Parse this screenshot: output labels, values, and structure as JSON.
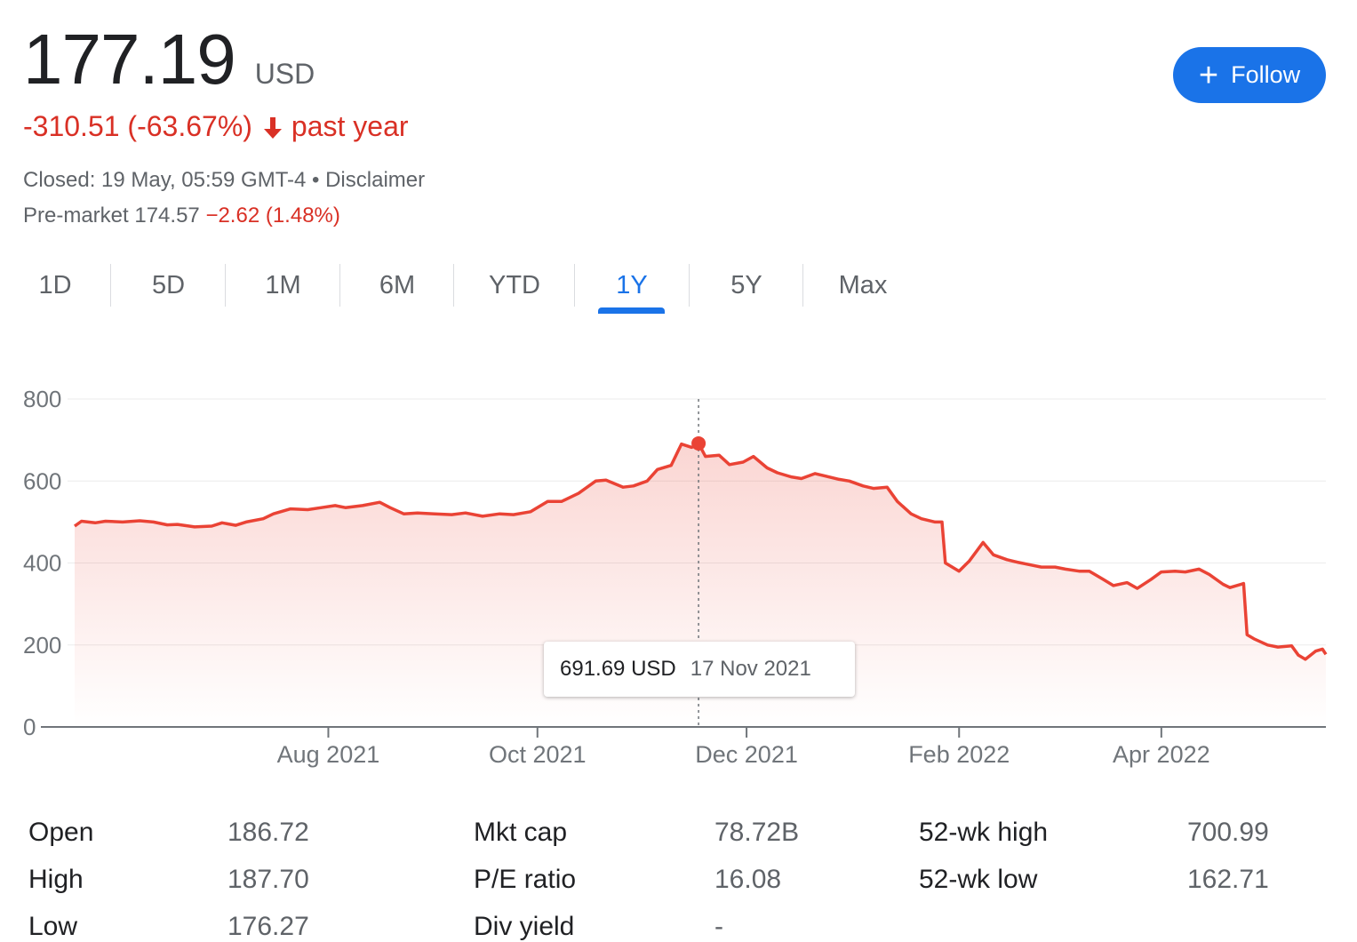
{
  "quote": {
    "price": "177.19",
    "currency": "USD",
    "change_text": "-310.51 (-63.67%)",
    "period_text": "past year",
    "closed_text": "Closed: 19 May, 05:59 GMT-4 • Disclaimer",
    "premarket_label": "Pre-market 174.57",
    "premarket_change": "−2.62 (1.48%)",
    "negative_color": "#d93025"
  },
  "follow_button": {
    "label": "Follow",
    "icon": "plus-icon",
    "color": "#1a73e8"
  },
  "range_tabs": {
    "items": [
      "1D",
      "5D",
      "1M",
      "6M",
      "YTD",
      "1Y",
      "5Y",
      "Max"
    ],
    "active": "1Y"
  },
  "tooltip": {
    "value": "691.69 USD",
    "date": "17 Nov 2021"
  },
  "chart_data": {
    "type": "area",
    "title": "",
    "xlabel": "",
    "ylabel": "",
    "ylim": [
      0,
      800
    ],
    "y_ticks": [
      "0",
      "200",
      "400",
      "600",
      "800"
    ],
    "x_ticks": [
      "Aug 2021",
      "Oct 2021",
      "Dec 2021",
      "Feb 2022",
      "Apr 2022"
    ],
    "x_range": [
      "2021-05-19",
      "2022-05-19"
    ],
    "grid": true,
    "line_color": "#ea4335",
    "highlight": {
      "x": "2021-11-17",
      "y": 691.69
    },
    "series": [
      {
        "values": [
          [
            "2021-05-19",
            490
          ],
          [
            "2021-05-21",
            502
          ],
          [
            "2021-05-25",
            498
          ],
          [
            "2021-05-28",
            502
          ],
          [
            "2021-06-02",
            500
          ],
          [
            "2021-06-07",
            503
          ],
          [
            "2021-06-11",
            500
          ],
          [
            "2021-06-15",
            493
          ],
          [
            "2021-06-18",
            494
          ],
          [
            "2021-06-23",
            488
          ],
          [
            "2021-06-28",
            490
          ],
          [
            "2021-07-01",
            498
          ],
          [
            "2021-07-05",
            492
          ],
          [
            "2021-07-08",
            500
          ],
          [
            "2021-07-13",
            508
          ],
          [
            "2021-07-16",
            520
          ],
          [
            "2021-07-21",
            532
          ],
          [
            "2021-07-26",
            530
          ],
          [
            "2021-07-30",
            535
          ],
          [
            "2021-08-03",
            540
          ],
          [
            "2021-08-06",
            535
          ],
          [
            "2021-08-11",
            540
          ],
          [
            "2021-08-16",
            548
          ],
          [
            "2021-08-19",
            535
          ],
          [
            "2021-08-23",
            520
          ],
          [
            "2021-08-27",
            522
          ],
          [
            "2021-09-01",
            520
          ],
          [
            "2021-09-06",
            518
          ],
          [
            "2021-09-10",
            522
          ],
          [
            "2021-09-15",
            514
          ],
          [
            "2021-09-20",
            520
          ],
          [
            "2021-09-24",
            518
          ],
          [
            "2021-09-29",
            525
          ],
          [
            "2021-10-04",
            550
          ],
          [
            "2021-10-08",
            550
          ],
          [
            "2021-10-13",
            570
          ],
          [
            "2021-10-18",
            600
          ],
          [
            "2021-10-21",
            602
          ],
          [
            "2021-10-26",
            585
          ],
          [
            "2021-10-29",
            588
          ],
          [
            "2021-11-02",
            600
          ],
          [
            "2021-11-05",
            628
          ],
          [
            "2021-11-09",
            638
          ],
          [
            "2021-11-12",
            690
          ],
          [
            "2021-11-15",
            682
          ],
          [
            "2021-11-17",
            691.69
          ],
          [
            "2021-11-19",
            660
          ],
          [
            "2021-11-23",
            663
          ],
          [
            "2021-11-26",
            640
          ],
          [
            "2021-11-30",
            646
          ],
          [
            "2021-12-03",
            660
          ],
          [
            "2021-12-07",
            632
          ],
          [
            "2021-12-10",
            620
          ],
          [
            "2021-12-14",
            610
          ],
          [
            "2021-12-17",
            606
          ],
          [
            "2021-12-21",
            618
          ],
          [
            "2021-12-24",
            612
          ],
          [
            "2021-12-28",
            604
          ],
          [
            "2021-12-31",
            600
          ],
          [
            "2022-01-04",
            588
          ],
          [
            "2022-01-07",
            582
          ],
          [
            "2022-01-11",
            585
          ],
          [
            "2022-01-14",
            550
          ],
          [
            "2022-01-18",
            520
          ],
          [
            "2022-01-21",
            508
          ],
          [
            "2022-01-25",
            500
          ],
          [
            "2022-01-27",
            500
          ],
          [
            "2022-01-28",
            400
          ],
          [
            "2022-02-01",
            380
          ],
          [
            "2022-02-04",
            405
          ],
          [
            "2022-02-08",
            450
          ],
          [
            "2022-02-11",
            420
          ],
          [
            "2022-02-15",
            408
          ],
          [
            "2022-02-18",
            402
          ],
          [
            "2022-02-22",
            395
          ],
          [
            "2022-02-25",
            390
          ],
          [
            "2022-03-01",
            390
          ],
          [
            "2022-03-04",
            385
          ],
          [
            "2022-03-08",
            380
          ],
          [
            "2022-03-11",
            380
          ],
          [
            "2022-03-15",
            360
          ],
          [
            "2022-03-18",
            345
          ],
          [
            "2022-03-22",
            352
          ],
          [
            "2022-03-25",
            338
          ],
          [
            "2022-03-29",
            360
          ],
          [
            "2022-04-01",
            378
          ],
          [
            "2022-04-05",
            380
          ],
          [
            "2022-04-08",
            378
          ],
          [
            "2022-04-12",
            385
          ],
          [
            "2022-04-15",
            372
          ],
          [
            "2022-04-19",
            348
          ],
          [
            "2022-04-21",
            340
          ],
          [
            "2022-04-25",
            350
          ],
          [
            "2022-04-26",
            225
          ],
          [
            "2022-04-28",
            215
          ],
          [
            "2022-05-02",
            200
          ],
          [
            "2022-05-05",
            195
          ],
          [
            "2022-05-09",
            198
          ],
          [
            "2022-05-11",
            175
          ],
          [
            "2022-05-13",
            165
          ],
          [
            "2022-05-16",
            185
          ],
          [
            "2022-05-18",
            190
          ],
          [
            "2022-05-19",
            177.19
          ]
        ]
      }
    ]
  },
  "stats": [
    {
      "label": "Open",
      "value": "186.72"
    },
    {
      "label": "High",
      "value": "187.70"
    },
    {
      "label": "Low",
      "value": "176.27"
    },
    {
      "label": "Mkt cap",
      "value": "78.72B"
    },
    {
      "label": "P/E ratio",
      "value": "16.08"
    },
    {
      "label": "Div yield",
      "value": "-"
    },
    {
      "label": "52-wk high",
      "value": "700.99"
    },
    {
      "label": "52-wk low",
      "value": "162.71"
    }
  ]
}
